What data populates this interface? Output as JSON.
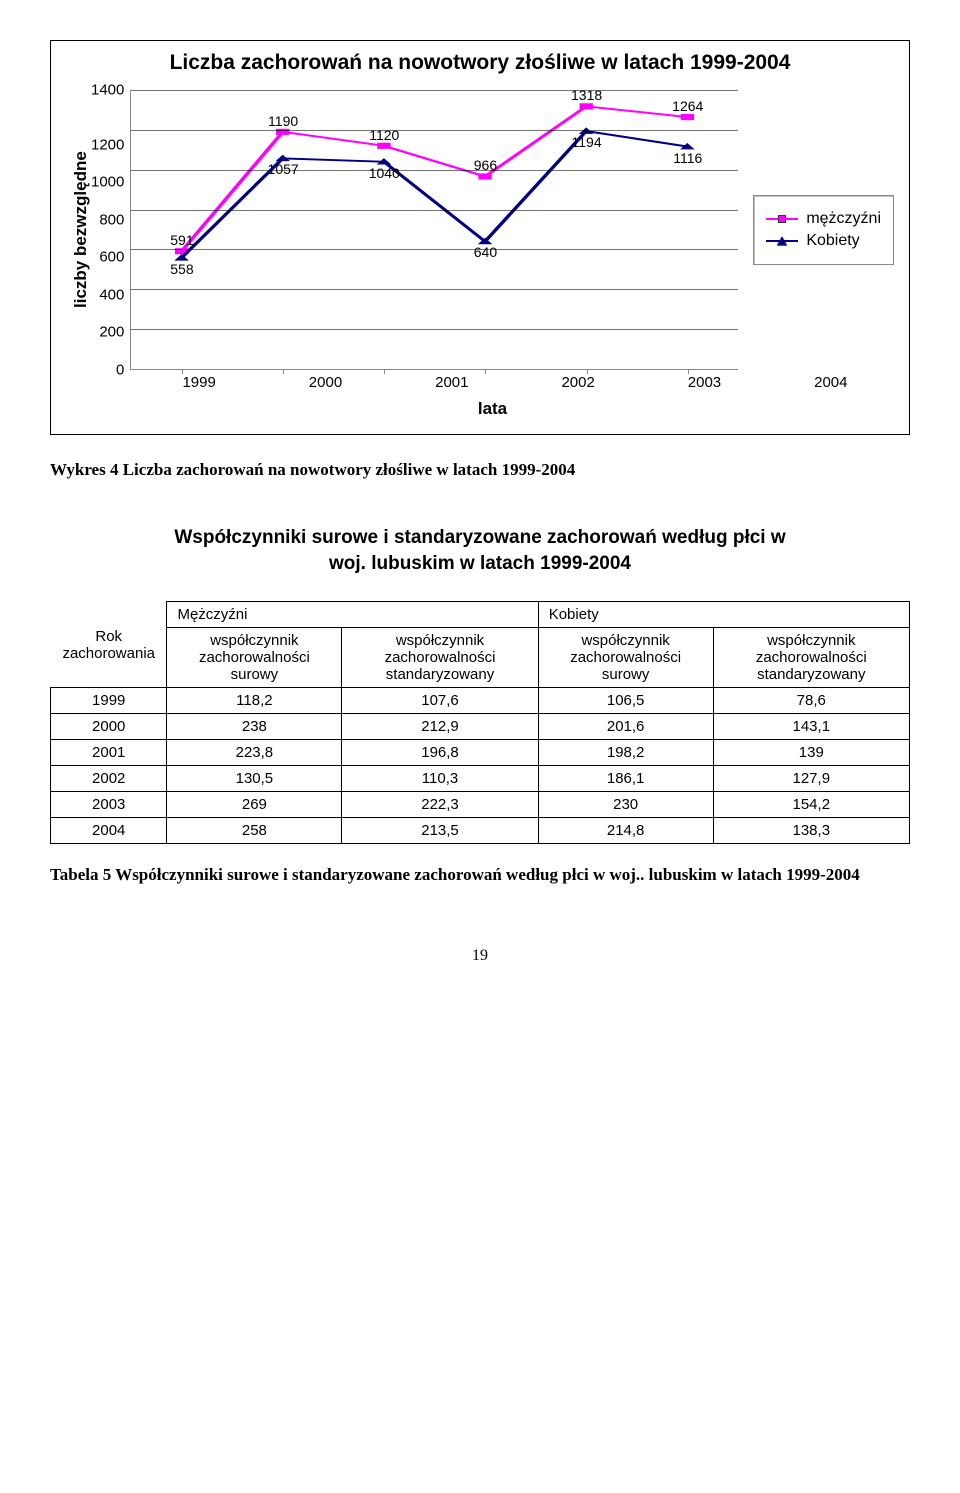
{
  "chart": {
    "title": "Liczba zachorowań na nowotwory złośliwe w latach 1999-2004",
    "y_label": "liczby bezwzględne",
    "x_label": "lata",
    "series1_name": "mężczyźni",
    "series2_name": "Kobiety",
    "series1_color": "#ff00ff",
    "series2_color": "#000080",
    "series1_marker": "square",
    "series2_marker": "triangle",
    "line_width": 2,
    "background_color": "#ffffff",
    "plot_bg": "#ffffff",
    "grid_color": "#000000",
    "years": [
      "1999",
      "2000",
      "2001",
      "2002",
      "2003",
      "2004"
    ],
    "series1_values": [
      591,
      1190,
      1120,
      966,
      1318,
      1264
    ],
    "series2_values": [
      558,
      1057,
      1040,
      640,
      1194,
      1116
    ],
    "series1_label_offsets": [
      "above",
      "above",
      "above",
      "above",
      "above",
      "above"
    ],
    "series2_label_offsets": [
      "below",
      "below",
      "below",
      "below",
      "below",
      "below"
    ],
    "y_ticks": [
      0,
      200,
      400,
      600,
      800,
      1000,
      1200,
      1400
    ],
    "ymin": 0,
    "ymax": 1400
  },
  "caption1": "Wykres 4 Liczba zachorowań na nowotwory złośliwe w latach 1999-2004",
  "section_title_line1": "Współczynniki surowe i standaryzowane zachorowań według płci w",
  "section_title_line2": "woj. lubuskim w latach 1999-2004",
  "table": {
    "header_gender1": "Mężczyźni",
    "header_gender2": "Kobiety",
    "col0": "Rok zachorowania",
    "col1": "współczynnik zachorowalności surowy",
    "col2": "współczynnik zachorowalności standaryzowany",
    "col3": "współczynnik zachorowalności surowy",
    "col4": "współczynnik zachorowalności standaryzowany",
    "rows": [
      [
        "1999",
        "118,2",
        "107,6",
        "106,5",
        "78,6"
      ],
      [
        "2000",
        "238",
        "212,9",
        "201,6",
        "143,1"
      ],
      [
        "2001",
        "223,8",
        "196,8",
        "198,2",
        "139"
      ],
      [
        "2002",
        "130,5",
        "110,3",
        "186,1",
        "127,9"
      ],
      [
        "2003",
        "269",
        "222,3",
        "230",
        "154,2"
      ],
      [
        "2004",
        "258",
        "213,5",
        "214,8",
        "138,3"
      ]
    ]
  },
  "caption2": "Tabela 5 Współczynniki surowe i standaryzowane zachorowań według płci w woj.. lubuskim w latach 1999-2004",
  "page_number": "19"
}
